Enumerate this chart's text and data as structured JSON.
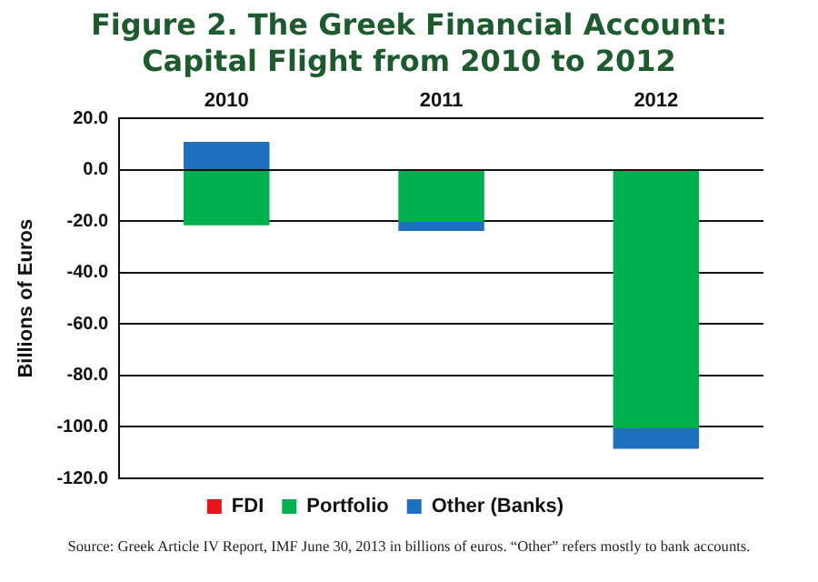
{
  "chart_data": {
    "type": "bar",
    "title": "Figure 2. The Greek Financial Account:\nCapital Flight from 2010 to 2012",
    "ylabel": "Billions of Euros",
    "categories": [
      "2010",
      "2011",
      "2012"
    ],
    "stacked": true,
    "series": [
      {
        "name": "FDI",
        "color": "#e8141c",
        "values": [
          null,
          0,
          null
        ]
      },
      {
        "name": "Portfolio",
        "color": "#00b04f",
        "values": [
          -21.5,
          -20.2,
          -100.5
        ]
      },
      {
        "name": "Other (Banks)",
        "color": "#1f6fbf",
        "values": [
          10.9,
          -3.5,
          -8
        ]
      }
    ],
    "ylim": [
      -120,
      20
    ],
    "yticks": [
      {
        "value": 20,
        "label": "20.0"
      },
      {
        "value": 0,
        "label": "0.0"
      },
      {
        "value": -20,
        "label": "-20.0"
      },
      {
        "value": -40,
        "label": "-40.0"
      },
      {
        "value": -60,
        "label": "-60.0"
      },
      {
        "value": -80,
        "label": "-80.0"
      },
      {
        "value": -100,
        "label": "-100.0"
      },
      {
        "value": -120,
        "label": "-120.0"
      }
    ],
    "grid": "y",
    "legend": "bottom",
    "annotations": [
      "Source: Greek Article IV Report, IMF June 30, 2013 in billions of euros. “Other” refers mostly to bank accounts."
    ]
  }
}
